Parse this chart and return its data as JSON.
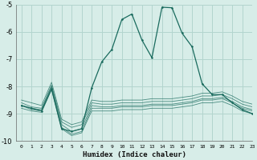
{
  "xlabel": "Humidex (Indice chaleur)",
  "bg_color": "#d7ede8",
  "grid_color": "#b2d5ce",
  "line_color": "#1a6b5e",
  "xlim": [
    -0.5,
    23
  ],
  "ylim": [
    -10,
    -5
  ],
  "yticks": [
    -10,
    -9,
    -8,
    -7,
    -6,
    -5
  ],
  "xticks": [
    0,
    1,
    2,
    3,
    4,
    5,
    6,
    7,
    8,
    9,
    10,
    11,
    12,
    13,
    14,
    15,
    16,
    17,
    18,
    19,
    20,
    21,
    22,
    23
  ],
  "series": [
    {
      "x": [
        0,
        1,
        2,
        3,
        4,
        5,
        6,
        7,
        8,
        9,
        10,
        11,
        12,
        13,
        14,
        15,
        16,
        17,
        18,
        19,
        20,
        21,
        22,
        23
      ],
      "y": [
        -8.7,
        -8.8,
        -8.85,
        -8.0,
        -9.4,
        -9.65,
        -9.55,
        -8.7,
        -8.75,
        -8.75,
        -8.7,
        -8.7,
        -8.7,
        -8.65,
        -8.65,
        -8.65,
        -8.6,
        -8.55,
        -8.45,
        -8.45,
        -8.4,
        -8.55,
        -8.75,
        -8.85
      ]
    },
    {
      "x": [
        0,
        1,
        2,
        3,
        4,
        5,
        6,
        7,
        8,
        9,
        10,
        11,
        12,
        13,
        14,
        15,
        16,
        17,
        18,
        19,
        20,
        21,
        22,
        23
      ],
      "y": [
        -8.7,
        -8.85,
        -8.9,
        -8.05,
        -9.5,
        -9.75,
        -9.65,
        -8.8,
        -8.8,
        -8.8,
        -8.75,
        -8.75,
        -8.75,
        -8.7,
        -8.7,
        -8.7,
        -8.65,
        -8.6,
        -8.5,
        -8.5,
        -8.45,
        -8.6,
        -8.8,
        -8.9
      ]
    },
    {
      "x": [
        0,
        1,
        2,
        3,
        4,
        5,
        6,
        7,
        8,
        9,
        10,
        11,
        12,
        13,
        14,
        15,
        16,
        17,
        18,
        19,
        20,
        21,
        22,
        23
      ],
      "y": [
        -8.6,
        -8.75,
        -8.8,
        -7.95,
        -9.3,
        -9.5,
        -9.4,
        -8.6,
        -8.65,
        -8.65,
        -8.6,
        -8.6,
        -8.6,
        -8.55,
        -8.55,
        -8.55,
        -8.5,
        -8.45,
        -8.35,
        -8.35,
        -8.3,
        -8.45,
        -8.65,
        -8.75
      ]
    },
    {
      "x": [
        0,
        1,
        2,
        3,
        4,
        5,
        6,
        7,
        8,
        9,
        10,
        11,
        12,
        13,
        14,
        15,
        16,
        17,
        18,
        19,
        20,
        21,
        22,
        23
      ],
      "y": [
        -8.5,
        -8.6,
        -8.7,
        -7.85,
        -9.2,
        -9.4,
        -9.3,
        -8.5,
        -8.55,
        -8.55,
        -8.5,
        -8.5,
        -8.5,
        -8.45,
        -8.45,
        -8.45,
        -8.4,
        -8.35,
        -8.25,
        -8.25,
        -8.2,
        -8.35,
        -8.55,
        -8.65
      ]
    },
    {
      "x": [
        0,
        1,
        2,
        3,
        4,
        5,
        6,
        7,
        8,
        9,
        10,
        11,
        12,
        13,
        14,
        15,
        16,
        17,
        18,
        19,
        20,
        21,
        22,
        23
      ],
      "y": [
        -8.8,
        -8.9,
        -8.95,
        -8.1,
        -9.55,
        -9.8,
        -9.7,
        -8.9,
        -8.9,
        -8.9,
        -8.85,
        -8.85,
        -8.85,
        -8.8,
        -8.8,
        -8.8,
        -8.75,
        -8.7,
        -8.6,
        -8.6,
        -8.55,
        -8.7,
        -8.9,
        -9.0
      ]
    }
  ],
  "main_series": {
    "x": [
      0,
      1,
      2,
      3,
      4,
      5,
      6,
      7,
      8,
      9,
      10,
      11,
      12,
      13,
      14,
      15,
      16,
      17,
      18,
      19,
      20,
      21,
      22,
      23
    ],
    "y": [
      -8.7,
      -8.8,
      -8.9,
      -8.1,
      -9.55,
      -9.65,
      -9.55,
      -8.05,
      -7.1,
      -6.65,
      -5.55,
      -5.35,
      -6.3,
      -6.95,
      -5.1,
      -5.12,
      -6.05,
      -6.55,
      -7.9,
      -8.3,
      -8.3,
      -8.6,
      -8.85,
      -9.0
    ]
  }
}
